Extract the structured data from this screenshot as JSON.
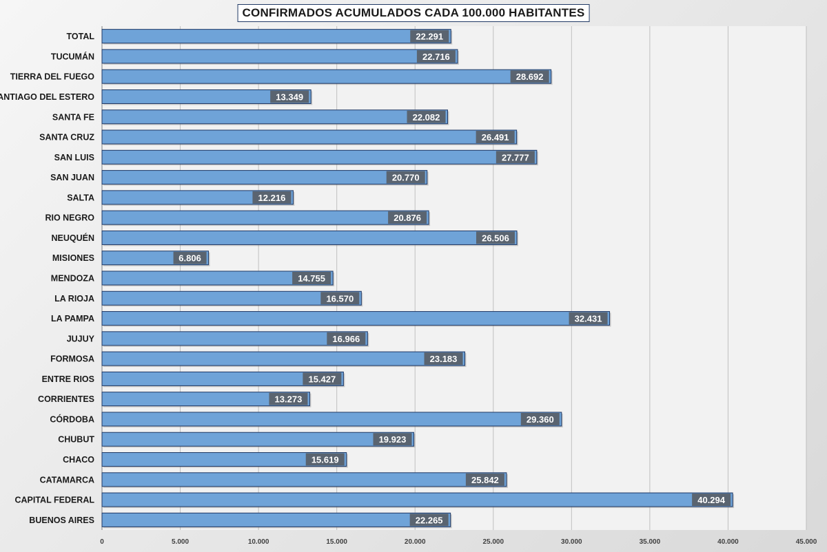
{
  "chart_data": {
    "type": "bar",
    "orientation": "horizontal",
    "title": "CONFIRMADOS ACUMULADOS CADA 100.000 HABITANTES",
    "xlabel": "",
    "ylabel": "",
    "xlim": [
      0,
      45000
    ],
    "xticks": [
      0,
      5000,
      10000,
      15000,
      20000,
      25000,
      30000,
      35000,
      40000,
      45000
    ],
    "xtick_labels": [
      "0",
      "5.000",
      "10.000",
      "15.000",
      "20.000",
      "25.000",
      "30.000",
      "35.000",
      "40.000",
      "45.000"
    ],
    "grid": true,
    "categories": [
      "TOTAL",
      "TUCUMÁN",
      "TIERRA DEL FUEGO",
      "SANTIAGO DEL ESTERO",
      "SANTA FE",
      "SANTA CRUZ",
      "SAN LUIS",
      "SAN JUAN",
      "SALTA",
      "RIO NEGRO",
      "NEUQUÉN",
      "MISIONES",
      "MENDOZA",
      "LA RIOJA",
      "LA PAMPA",
      "JUJUY",
      "FORMOSA",
      "ENTRE RIOS",
      "CORRIENTES",
      "CÓRDOBA",
      "CHUBUT",
      "CHACO",
      "CATAMARCA",
      "CAPITAL FEDERAL",
      "BUENOS AIRES"
    ],
    "values": [
      22291,
      22716,
      28692,
      13349,
      22082,
      26491,
      27777,
      20770,
      12216,
      20876,
      26506,
      6806,
      14755,
      16570,
      32431,
      16966,
      23183,
      15427,
      13273,
      29360,
      19923,
      15619,
      25842,
      40294,
      22265
    ],
    "value_labels": [
      "22.291",
      "22.716",
      "28.692",
      "13.349",
      "22.082",
      "26.491",
      "27.777",
      "20.770",
      "12.216",
      "20.876",
      "26.506",
      "6.806",
      "14.755",
      "16.570",
      "32.431",
      "16.966",
      "23.183",
      "15.427",
      "13.273",
      "29.360",
      "19.923",
      "15.619",
      "25.842",
      "40.294",
      "22.265"
    ],
    "colors": {
      "bar": "#6fa3d8",
      "bar_border": "#1f3864",
      "label_bg": "#5a6470",
      "label_text": "#ffffff",
      "grid": "#bfbfbf",
      "plot_bg": "#f2f2f2"
    }
  }
}
